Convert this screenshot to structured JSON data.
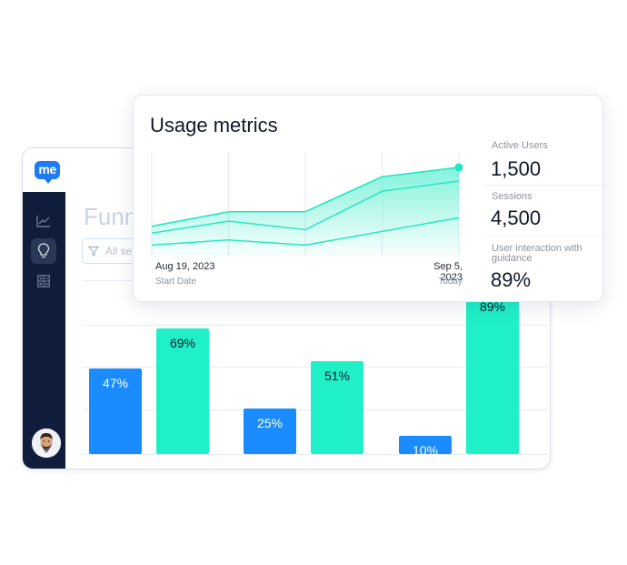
{
  "app": {
    "logo": "me",
    "page_title": "Funn",
    "filter_placeholder": "All se",
    "sidebar_icons": [
      "line-chart-icon",
      "lightbulb-icon",
      "calculator-icon"
    ],
    "bars": [
      {
        "value": 47,
        "label": "47%",
        "color": "#1a8cff"
      },
      {
        "value": 69,
        "label": "69%",
        "color": "#20f0c8"
      },
      {
        "value": 25,
        "label": "25%",
        "color": "#1a8cff"
      },
      {
        "value": 51,
        "label": "51%",
        "color": "#20f0c8"
      },
      {
        "value": 10,
        "label": "10%",
        "color": "#1a8cff"
      },
      {
        "value": 89,
        "label": "89%",
        "color": "#20f0c8"
      }
    ]
  },
  "card": {
    "title": "Usage metrics",
    "start_date": "Aug 19, 2023",
    "start_label": "Start Date",
    "end_date": "Sep 5, 2023",
    "end_label": "Today",
    "metrics": [
      {
        "label": "Active Users",
        "value": "1,500"
      },
      {
        "label": "Sessions",
        "value": "4,500"
      },
      {
        "label": "User interaction with guidance",
        "value": "89%"
      }
    ]
  },
  "chart_data": {
    "type": "area",
    "x": [
      0,
      1,
      2,
      3,
      4
    ],
    "series": [
      {
        "values": [
          28,
          45,
          45,
          86,
          97
        ]
      },
      {
        "values": [
          20,
          34,
          24,
          69,
          81
        ]
      },
      {
        "values": [
          6,
          12,
          6,
          22,
          38
        ]
      }
    ],
    "ylim": [
      0,
      115
    ],
    "accent": "#1ee8c0"
  }
}
